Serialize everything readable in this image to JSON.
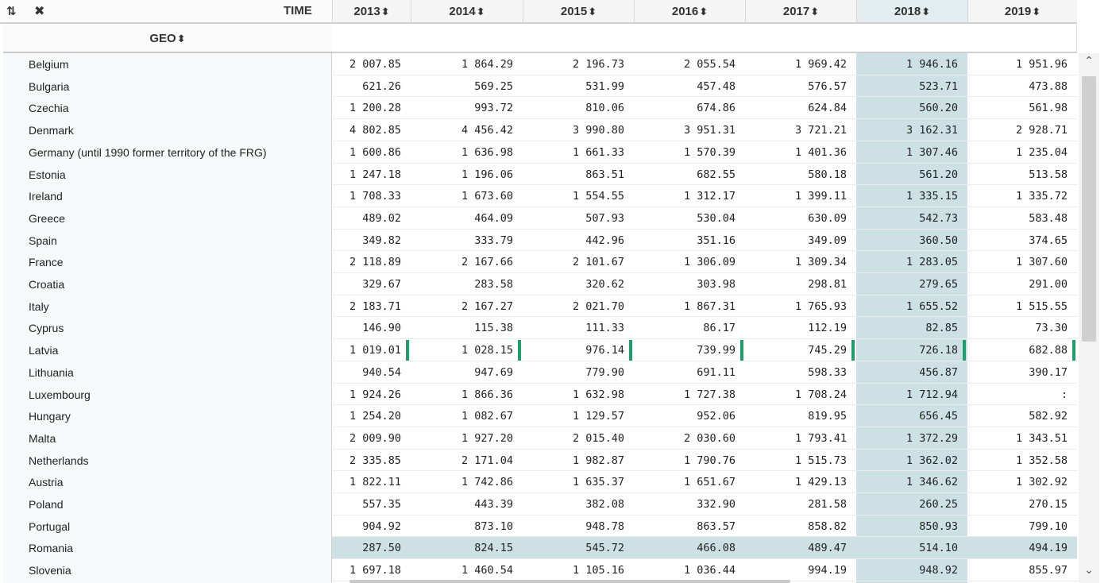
{
  "header": {
    "sort_icon_text": "⇅",
    "expand_icon_text": "✖",
    "time_label": "TIME",
    "geo_label": "GEO",
    "sort_arrow": "⬍"
  },
  "years": [
    "2013",
    "2014",
    "2015",
    "2016",
    "2017",
    "2018",
    "2019"
  ],
  "highlight": {
    "selected_year": "2018",
    "selected_row": "Romania",
    "color": "#cde0e4",
    "flag_color": "#1e9e6a",
    "flagged_row": "Latvia"
  },
  "rows": [
    {
      "geo": "Belgium",
      "values": [
        "2 007.85",
        "1 864.29",
        "2 196.73",
        "2 055.54",
        "1 969.42",
        "1 946.16",
        "1 951.96"
      ]
    },
    {
      "geo": "Bulgaria",
      "values": [
        "621.26",
        "569.25",
        "531.99",
        "457.48",
        "576.57",
        "523.71",
        "473.88"
      ]
    },
    {
      "geo": "Czechia",
      "values": [
        "1 200.28",
        "993.72",
        "810.06",
        "674.86",
        "624.84",
        "560.20",
        "561.98"
      ]
    },
    {
      "geo": "Denmark",
      "values": [
        "4 802.85",
        "4 456.42",
        "3 990.80",
        "3 951.31",
        "3 721.21",
        "3 162.31",
        "2 928.71"
      ]
    },
    {
      "geo": "Germany (until 1990 former territory of the FRG)",
      "values": [
        "1 600.86",
        "1 636.98",
        "1 661.33",
        "1 570.39",
        "1 401.36",
        "1 307.46",
        "1 235.04"
      ]
    },
    {
      "geo": "Estonia",
      "values": [
        "1 247.18",
        "1 196.06",
        "863.51",
        "682.55",
        "580.18",
        "561.20",
        "513.58"
      ]
    },
    {
      "geo": "Ireland",
      "values": [
        "1 708.33",
        "1 673.60",
        "1 554.55",
        "1 312.17",
        "1 399.11",
        "1 335.15",
        "1 335.72"
      ]
    },
    {
      "geo": "Greece",
      "values": [
        "489.02",
        "464.09",
        "507.93",
        "530.04",
        "630.09",
        "542.73",
        "583.48"
      ]
    },
    {
      "geo": "Spain",
      "values": [
        "349.82",
        "333.79",
        "442.96",
        "351.16",
        "349.09",
        "360.50",
        "374.65"
      ]
    },
    {
      "geo": "France",
      "values": [
        "2 118.89",
        "2 167.66",
        "2 101.67",
        "1 306.09",
        "1 309.34",
        "1 283.05",
        "1 307.60"
      ]
    },
    {
      "geo": "Croatia",
      "values": [
        "329.67",
        "283.58",
        "320.62",
        "303.98",
        "298.81",
        "279.65",
        "291.00"
      ]
    },
    {
      "geo": "Italy",
      "values": [
        "2 183.71",
        "2 167.27",
        "2 021.70",
        "1 867.31",
        "1 765.93",
        "1 655.52",
        "1 515.55"
      ]
    },
    {
      "geo": "Cyprus",
      "values": [
        "146.90",
        "115.38",
        "111.33",
        "86.17",
        "112.19",
        "82.85",
        "73.30"
      ]
    },
    {
      "geo": "Latvia",
      "values": [
        "1 019.01",
        "1 028.15",
        "976.14",
        "739.99",
        "745.29",
        "726.18",
        "682.88"
      ]
    },
    {
      "geo": "Lithuania",
      "values": [
        "940.54",
        "947.69",
        "779.90",
        "691.11",
        "598.33",
        "456.87",
        "390.17"
      ]
    },
    {
      "geo": "Luxembourg",
      "values": [
        "1 924.26",
        "1 866.36",
        "1 632.98",
        "1 727.38",
        "1 708.24",
        "1 712.94",
        ":"
      ]
    },
    {
      "geo": "Hungary",
      "values": [
        "1 254.20",
        "1 082.67",
        "1 129.57",
        "952.06",
        "819.95",
        "656.45",
        "582.92"
      ]
    },
    {
      "geo": "Malta",
      "values": [
        "2 009.90",
        "1 927.20",
        "2 015.40",
        "2 030.60",
        "1 793.41",
        "1 372.29",
        "1 343.51"
      ]
    },
    {
      "geo": "Netherlands",
      "values": [
        "2 335.85",
        "2 171.04",
        "1 982.87",
        "1 790.76",
        "1 515.73",
        "1 362.02",
        "1 352.58"
      ]
    },
    {
      "geo": "Austria",
      "values": [
        "1 822.11",
        "1 742.86",
        "1 635.37",
        "1 651.67",
        "1 429.13",
        "1 346.62",
        "1 302.92"
      ]
    },
    {
      "geo": "Poland",
      "values": [
        "557.35",
        "443.39",
        "382.08",
        "332.90",
        "281.58",
        "260.25",
        "270.15"
      ]
    },
    {
      "geo": "Portugal",
      "values": [
        "904.92",
        "873.10",
        "948.78",
        "863.57",
        "858.82",
        "850.93",
        "799.10"
      ]
    },
    {
      "geo": "Romania",
      "values": [
        "287.50",
        "824.15",
        "545.72",
        "466.08",
        "489.47",
        "514.10",
        "494.19"
      ]
    },
    {
      "geo": "Slovenia",
      "values": [
        "1 697.18",
        "1 460.54",
        "1 105.16",
        "1 036.44",
        "994.19",
        "948.92",
        "855.97"
      ]
    }
  ],
  "scroll": {
    "up_icon": "⌃",
    "down_icon": "⌄"
  }
}
